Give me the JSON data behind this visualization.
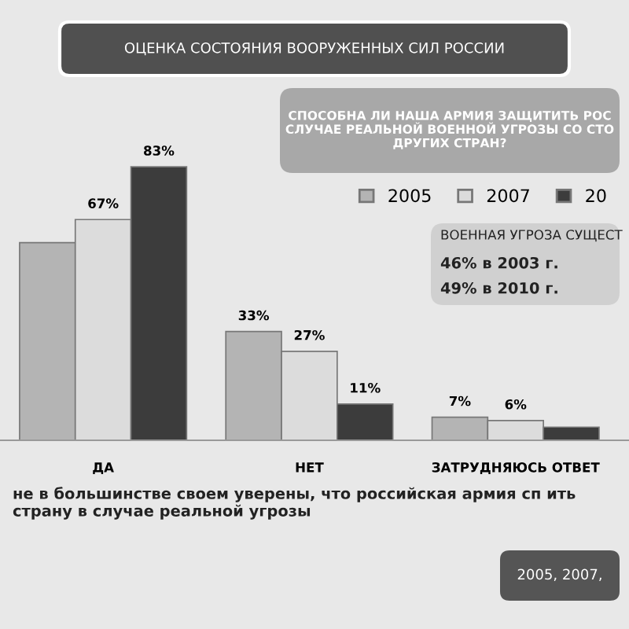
{
  "chart_data": {
    "type": "bar",
    "title": "ОЦЕНКА СОСТОЯНИЯ ВООРУЖЕННЫХ СИЛ РОССИИ",
    "subtitle": "СПОСОБНА ЛИ НАША АРМИЯ ЗАЩИТИТЬ РОС СЛУЧАЕ РЕАЛЬНОЙ ВОЕННОЙ УГРОЗЫ СО СТО ДРУГИХ СТРАН?",
    "categories": [
      "ДА",
      "НЕТ",
      "ЗАТРУДНЯЮСЬ ОТВЕТ"
    ],
    "series": [
      {
        "name": "2005",
        "color": "#b4b4b4",
        "values": [
          60,
          33,
          7
        ],
        "value_labels": [
          null,
          "33%",
          "7%"
        ]
      },
      {
        "name": "2007",
        "color": "#dcdcdc",
        "values": [
          67,
          27,
          6
        ],
        "value_labels": [
          "67%",
          "27%",
          "6%"
        ]
      },
      {
        "name": "20",
        "color": "#3c3c3c",
        "values": [
          83,
          11,
          4
        ],
        "value_labels": [
          "83%",
          "11%",
          null
        ]
      }
    ],
    "legend": "top right",
    "grid": false,
    "annotations": [
      "ВОЕННАЯ УГРОЗА СУЩЕСТ",
      "46% в 2003 г.",
      "49% в 2010 г.",
      "не в большинстве своем уверены, что российская армия сп ить страну в случае реальной угрозы",
      "2005, 2007,"
    ]
  }
}
